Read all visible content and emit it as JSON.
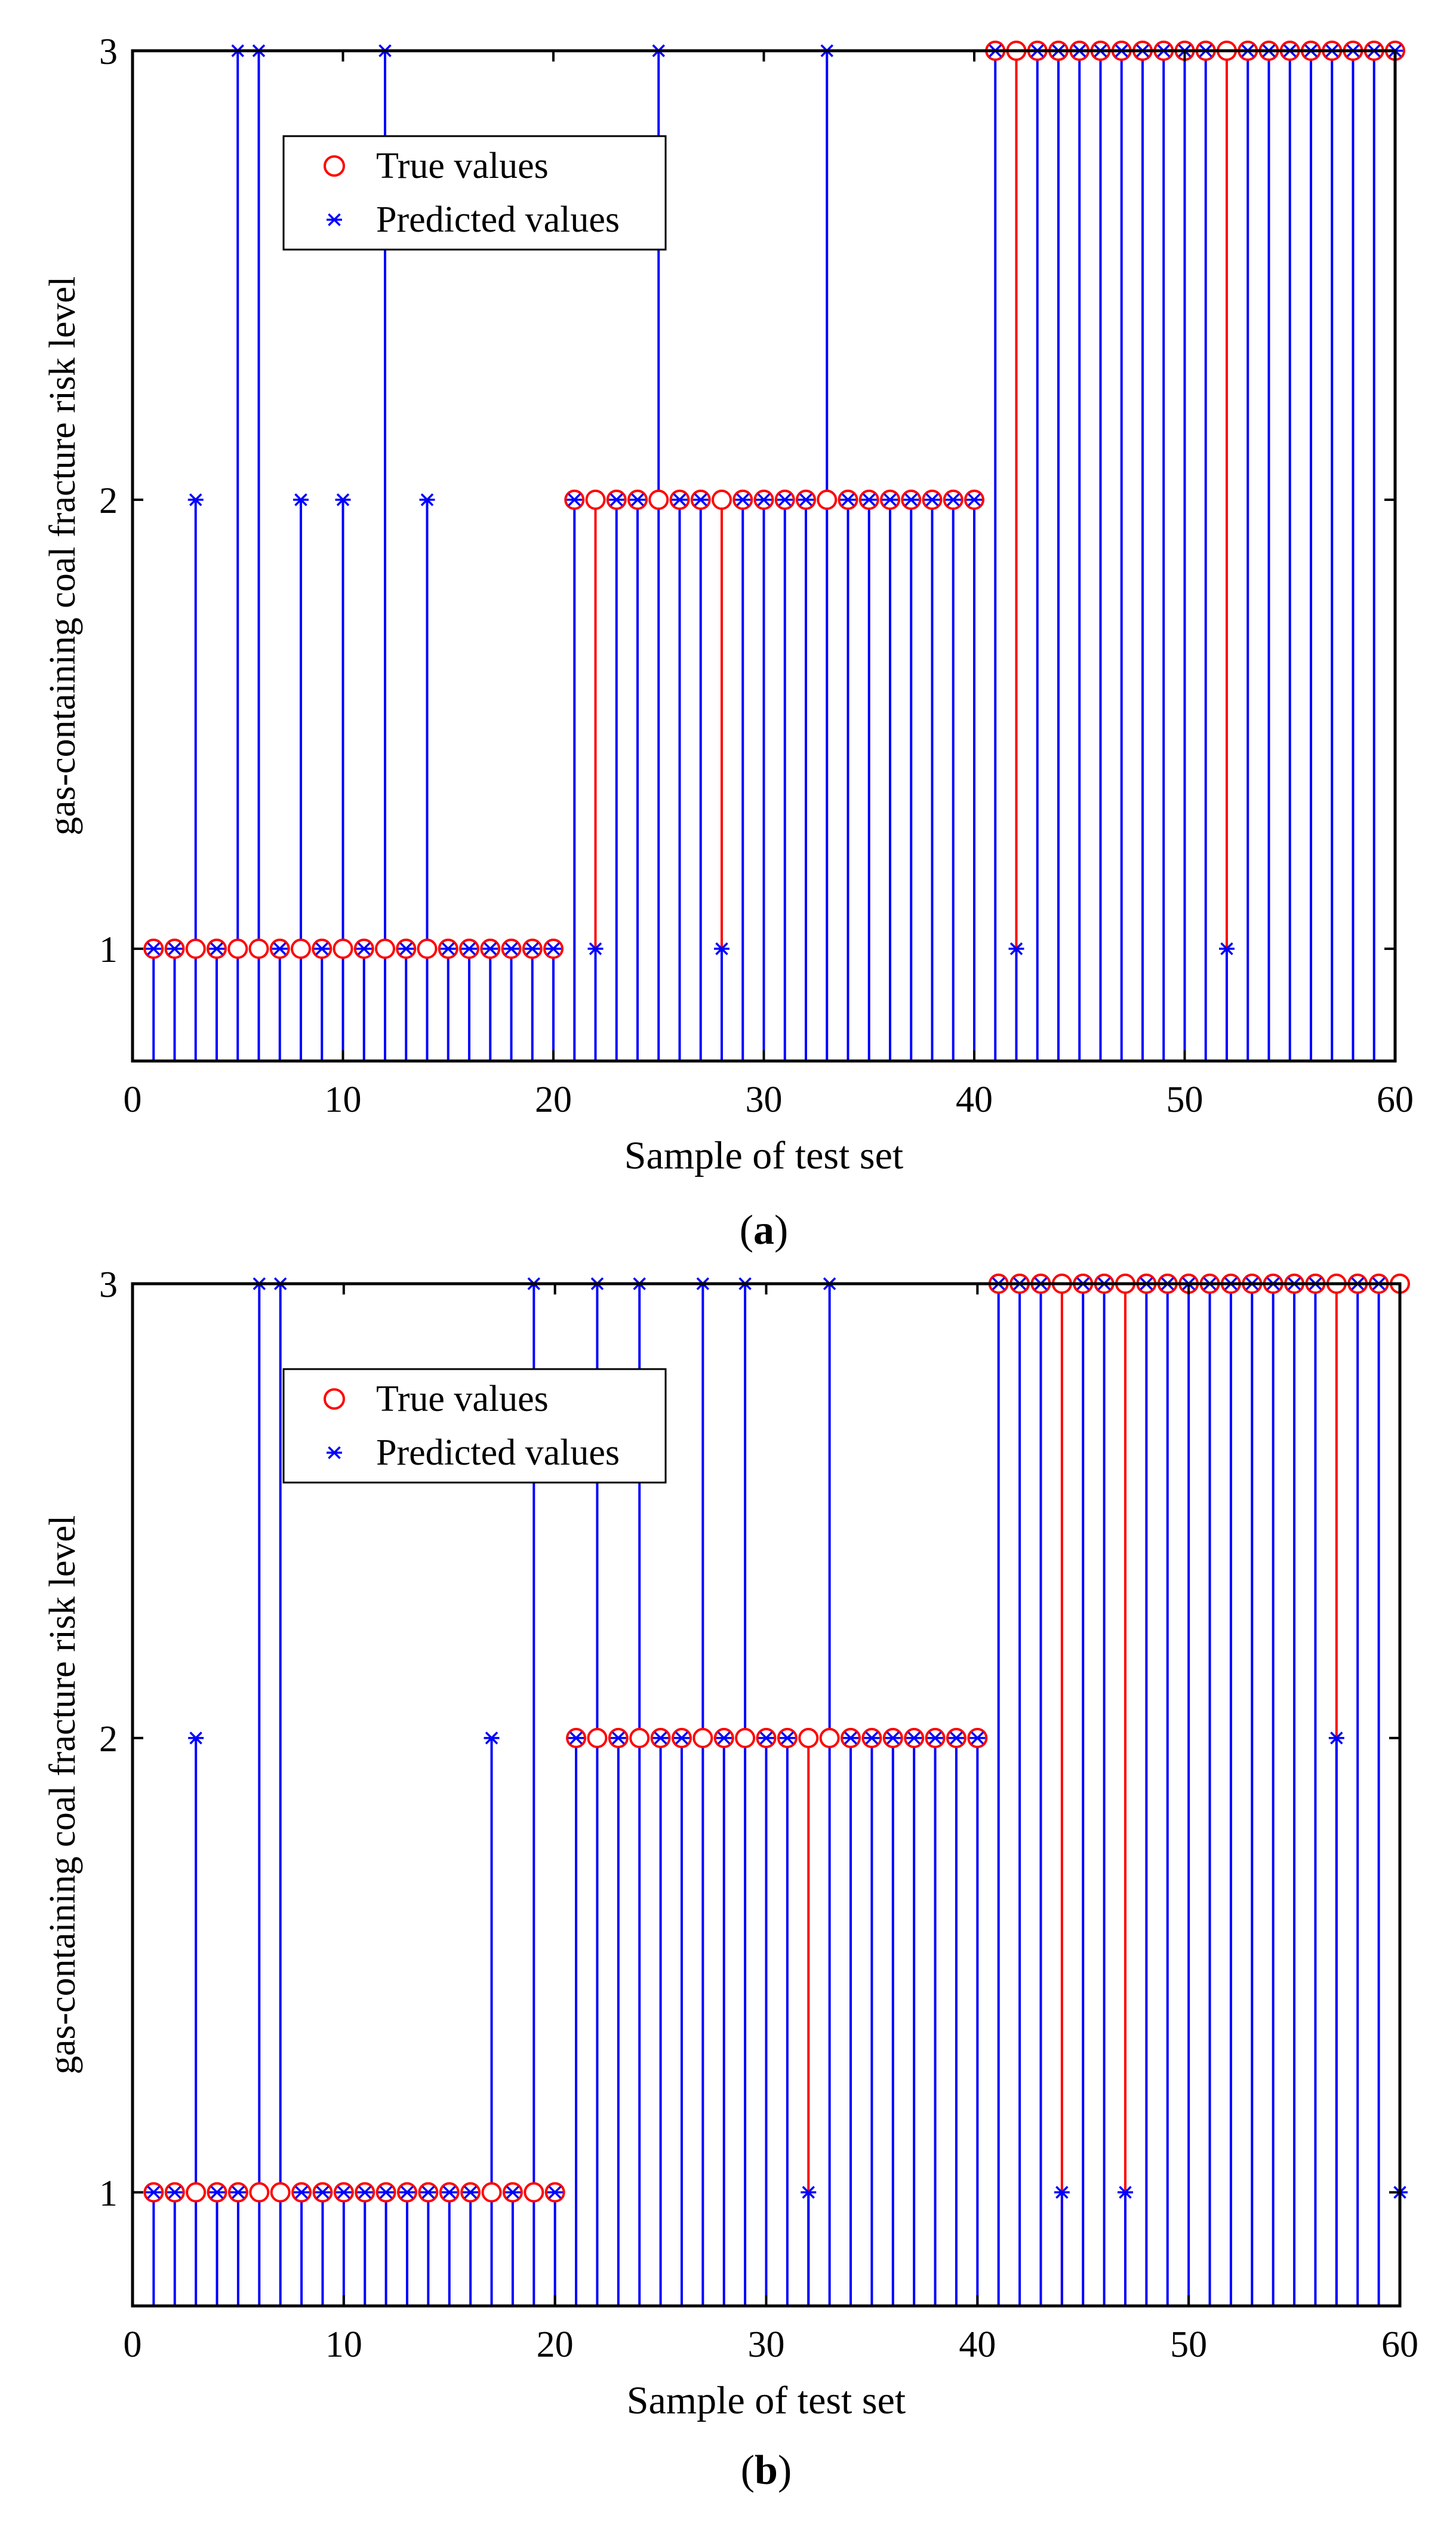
{
  "colors": {
    "true": "#ff0000",
    "pred": "#0000ff",
    "axis": "#000000"
  },
  "chart_data": [
    {
      "type": "stem",
      "panel_label": "a",
      "xlabel": "Sample of test set",
      "ylabel": "gas-containing coal fracture risk level",
      "xlim": [
        0,
        60
      ],
      "ylim": [
        0.75,
        3
      ],
      "xticks": [
        0,
        10,
        20,
        30,
        40,
        50,
        60
      ],
      "yticks": [
        1,
        2,
        3
      ],
      "legend": {
        "position": "top-left",
        "entries": [
          "True values",
          "Predicted values"
        ]
      },
      "x": [
        1,
        2,
        3,
        4,
        5,
        6,
        7,
        8,
        9,
        10,
        11,
        12,
        13,
        14,
        15,
        16,
        17,
        18,
        19,
        20,
        21,
        22,
        23,
        24,
        25,
        26,
        27,
        28,
        29,
        30,
        31,
        32,
        33,
        34,
        35,
        36,
        37,
        38,
        39,
        40,
        41,
        42,
        43,
        44,
        45,
        46,
        47,
        48,
        49,
        50,
        51,
        52,
        53,
        54,
        55,
        56,
        57,
        58,
        59,
        60
      ],
      "series": [
        {
          "name": "True values",
          "values": [
            1,
            1,
            1,
            1,
            1,
            1,
            1,
            1,
            1,
            1,
            1,
            1,
            1,
            1,
            1,
            1,
            1,
            1,
            1,
            1,
            2,
            2,
            2,
            2,
            2,
            2,
            2,
            2,
            2,
            2,
            2,
            2,
            2,
            2,
            2,
            2,
            2,
            2,
            2,
            2,
            3,
            3,
            3,
            3,
            3,
            3,
            3,
            3,
            3,
            3,
            3,
            3,
            3,
            3,
            3,
            3,
            3,
            3,
            3,
            3
          ]
        },
        {
          "name": "Predicted values",
          "values": [
            1,
            1,
            2,
            1,
            3,
            3,
            1,
            2,
            1,
            2,
            1,
            3,
            1,
            2,
            1,
            1,
            1,
            1,
            1,
            1,
            2,
            1,
            2,
            2,
            3,
            2,
            2,
            1,
            2,
            2,
            2,
            2,
            3,
            2,
            2,
            2,
            2,
            2,
            2,
            2,
            3,
            1,
            3,
            3,
            3,
            3,
            3,
            3,
            3,
            3,
            3,
            1,
            3,
            3,
            3,
            3,
            3,
            3,
            3,
            3
          ]
        }
      ]
    },
    {
      "type": "stem",
      "panel_label": "b",
      "xlabel": "Sample of test set",
      "ylabel": "gas-containing coal fracture risk level",
      "xlim": [
        0,
        60
      ],
      "ylim": [
        0.75,
        3
      ],
      "xticks": [
        0,
        10,
        20,
        30,
        40,
        50,
        60
      ],
      "yticks": [
        1,
        2,
        3
      ],
      "legend": {
        "position": "top-left",
        "entries": [
          "True values",
          "Predicted values"
        ]
      },
      "x": [
        1,
        2,
        3,
        4,
        5,
        6,
        7,
        8,
        9,
        10,
        11,
        12,
        13,
        14,
        15,
        16,
        17,
        18,
        19,
        20,
        21,
        22,
        23,
        24,
        25,
        26,
        27,
        28,
        29,
        30,
        31,
        32,
        33,
        34,
        35,
        36,
        37,
        38,
        39,
        40,
        41,
        42,
        43,
        44,
        45,
        46,
        47,
        48,
        49,
        50,
        51,
        52,
        53,
        54,
        55,
        56,
        57,
        58,
        59,
        60
      ],
      "series": [
        {
          "name": "True values",
          "values": [
            1,
            1,
            1,
            1,
            1,
            1,
            1,
            1,
            1,
            1,
            1,
            1,
            1,
            1,
            1,
            1,
            1,
            1,
            1,
            1,
            2,
            2,
            2,
            2,
            2,
            2,
            2,
            2,
            2,
            2,
            2,
            2,
            2,
            2,
            2,
            2,
            2,
            2,
            2,
            2,
            3,
            3,
            3,
            3,
            3,
            3,
            3,
            3,
            3,
            3,
            3,
            3,
            3,
            3,
            3,
            3,
            3,
            3,
            3,
            3
          ]
        },
        {
          "name": "Predicted values",
          "values": [
            1,
            1,
            2,
            1,
            1,
            3,
            3,
            1,
            1,
            1,
            1,
            1,
            1,
            1,
            1,
            1,
            2,
            1,
            3,
            1,
            2,
            3,
            2,
            3,
            2,
            2,
            3,
            2,
            3,
            2,
            2,
            1,
            3,
            2,
            2,
            2,
            2,
            2,
            2,
            2,
            3,
            3,
            3,
            1,
            3,
            3,
            1,
            3,
            3,
            3,
            3,
            3,
            3,
            3,
            3,
            3,
            2,
            3,
            3,
            1
          ]
        }
      ]
    }
  ]
}
